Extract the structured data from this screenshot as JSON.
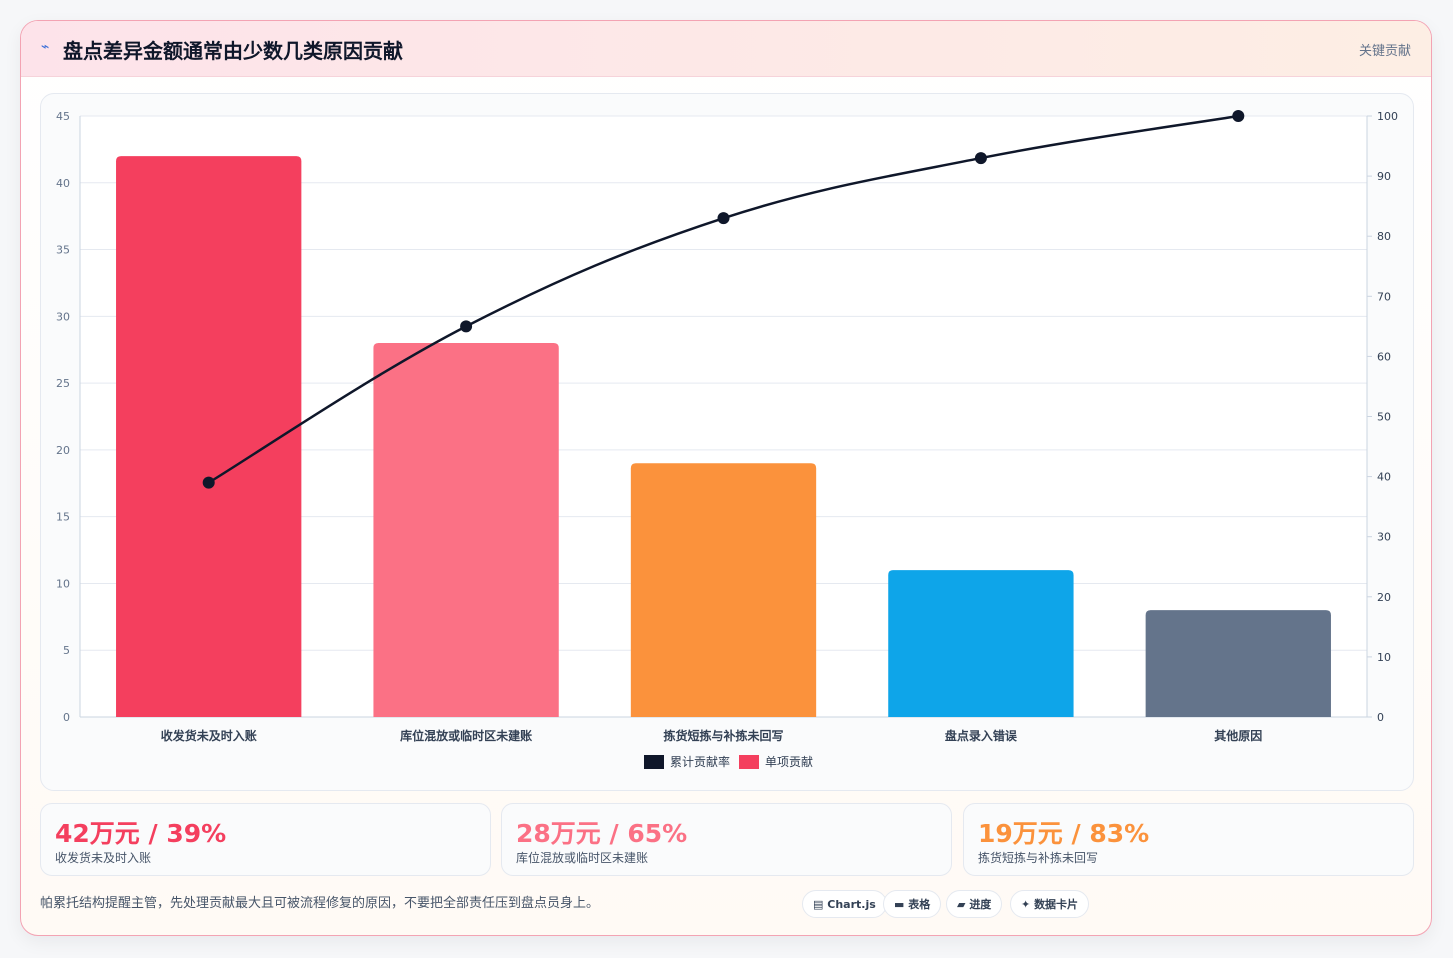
{
  "header": {
    "icon": "chart-spark-icon",
    "title": "盘点差异金额通常由少数几类原因贡献",
    "tag": "关键贡献"
  },
  "chart_data": {
    "type": "bar",
    "categories": [
      "收发货未及时入账",
      "库位混放或临时区未建账",
      "拣货短拣与补拣未回写",
      "盘点录入错误",
      "其他原因"
    ],
    "series": [
      {
        "name": "单项贡献",
        "type": "bar",
        "axis": "left",
        "values": [
          42,
          28,
          19,
          11,
          8
        ],
        "colors": [
          "#f43f5e",
          "#fb7185",
          "#fb923c",
          "#0ea5e9",
          "#64748b"
        ]
      },
      {
        "name": "累计贡献率",
        "type": "line",
        "axis": "right",
        "values": [
          39,
          65,
          83,
          93,
          100
        ],
        "color": "#0f172a"
      }
    ],
    "ylim_left": [
      0,
      45
    ],
    "yticks_left": [
      0,
      5,
      10,
      15,
      20,
      25,
      30,
      35,
      40,
      45
    ],
    "ylim_right": [
      0,
      100
    ],
    "yticks_right": [
      0,
      10,
      20,
      30,
      40,
      50,
      60,
      70,
      80,
      90,
      100
    ],
    "legend": [
      "累计贡献率",
      "单项贡献"
    ],
    "legend_position": "bottom",
    "grid": true,
    "title": "",
    "xlabel": "",
    "ylabel": ""
  },
  "stats": [
    {
      "value": "42万元 / 39%",
      "label": "收发货未及时入账",
      "color": "#f43f5e"
    },
    {
      "value": "28万元 / 65%",
      "label": "库位混放或临时区未建账",
      "color": "#fb7185"
    },
    {
      "value": "19万元 / 83%",
      "label": "拣货短拣与补拣未回写",
      "color": "#fb923c"
    }
  ],
  "footnote": "帕累托结构提醒主管，先处理贡献最大且可被流程修复的原因，不要把全部责任压到盘点员身上。",
  "pills": [
    {
      "icon": "chart-icon",
      "label": "Chart.js"
    },
    {
      "icon": "table-icon",
      "label": "表格"
    },
    {
      "icon": "progress-icon",
      "label": "进度"
    },
    {
      "icon": "sparkle-icon",
      "label": "数据卡片"
    }
  ]
}
